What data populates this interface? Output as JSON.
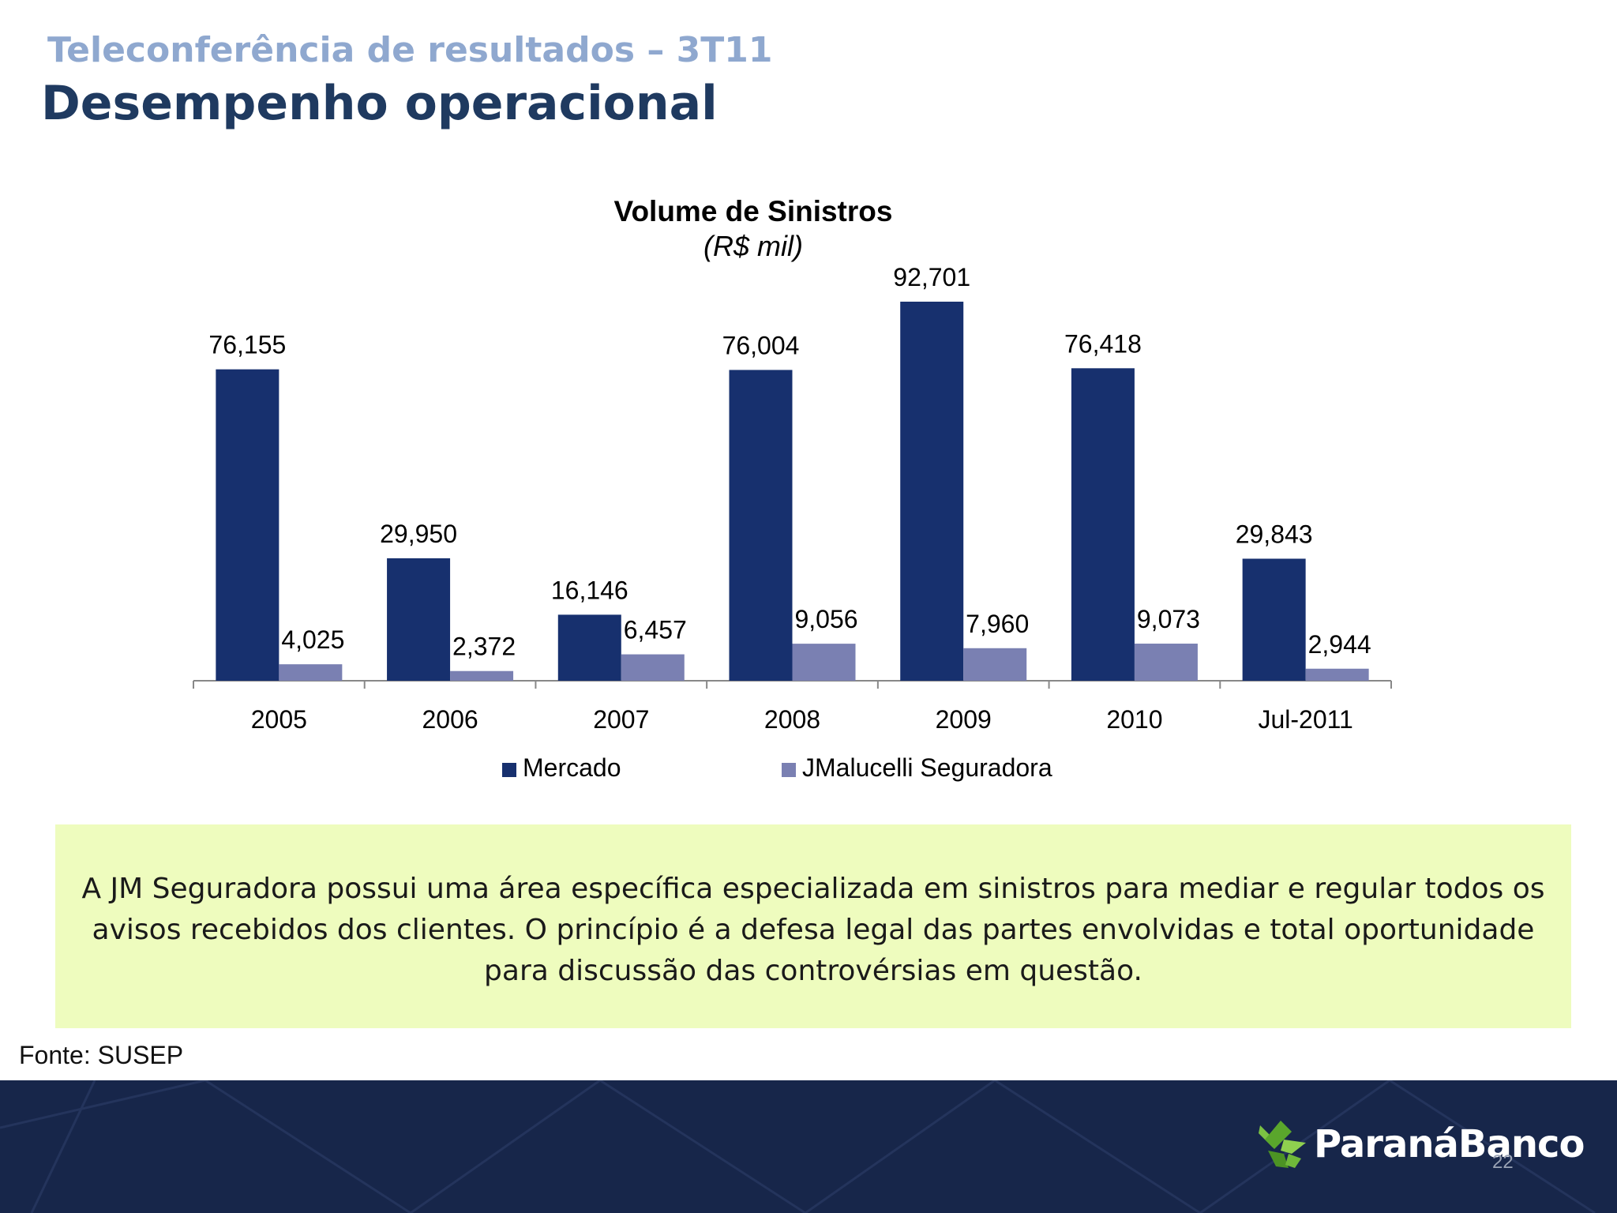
{
  "header": {
    "subtitle": "Teleconferência de resultados – 3T11",
    "title": "Desempenho operacional"
  },
  "chart_data": {
    "type": "bar",
    "title": "Volume de Sinistros",
    "subtitle": "(R$ mil)",
    "categories": [
      "2005",
      "2006",
      "2007",
      "2008",
      "2009",
      "2010",
      "Jul-2011"
    ],
    "series": [
      {
        "name": "Mercado",
        "color": "#17306e",
        "values": [
          76155,
          29950,
          16146,
          76004,
          92701,
          76418,
          29843
        ],
        "labels": [
          "76,155",
          "29,950",
          "16,146",
          "76,004",
          "92,701",
          "76,418",
          "29,843"
        ]
      },
      {
        "name": "JMalucelli Seguradora",
        "color": "#7a80b2",
        "values": [
          4025,
          2372,
          6457,
          9056,
          7960,
          9073,
          2944
        ],
        "labels": [
          "4,025",
          "2,372",
          "6,457",
          "9,056",
          "7,960",
          "9,073",
          "2,944"
        ]
      }
    ],
    "ylim": [
      0,
      100000
    ],
    "grid": false,
    "legend": "bottom"
  },
  "note": {
    "text": "A JM Seguradora possui uma área específica especializada em sinistros para mediar e regular todos os avisos recebidos dos clientes. O princípio é a defesa legal das partes envolvidas e total oportunidade para discussão das controvérsias em questão."
  },
  "source": "Fonte: SUSEP",
  "footer": {
    "logo_text": "ParanáBanco",
    "page_number": "22"
  }
}
